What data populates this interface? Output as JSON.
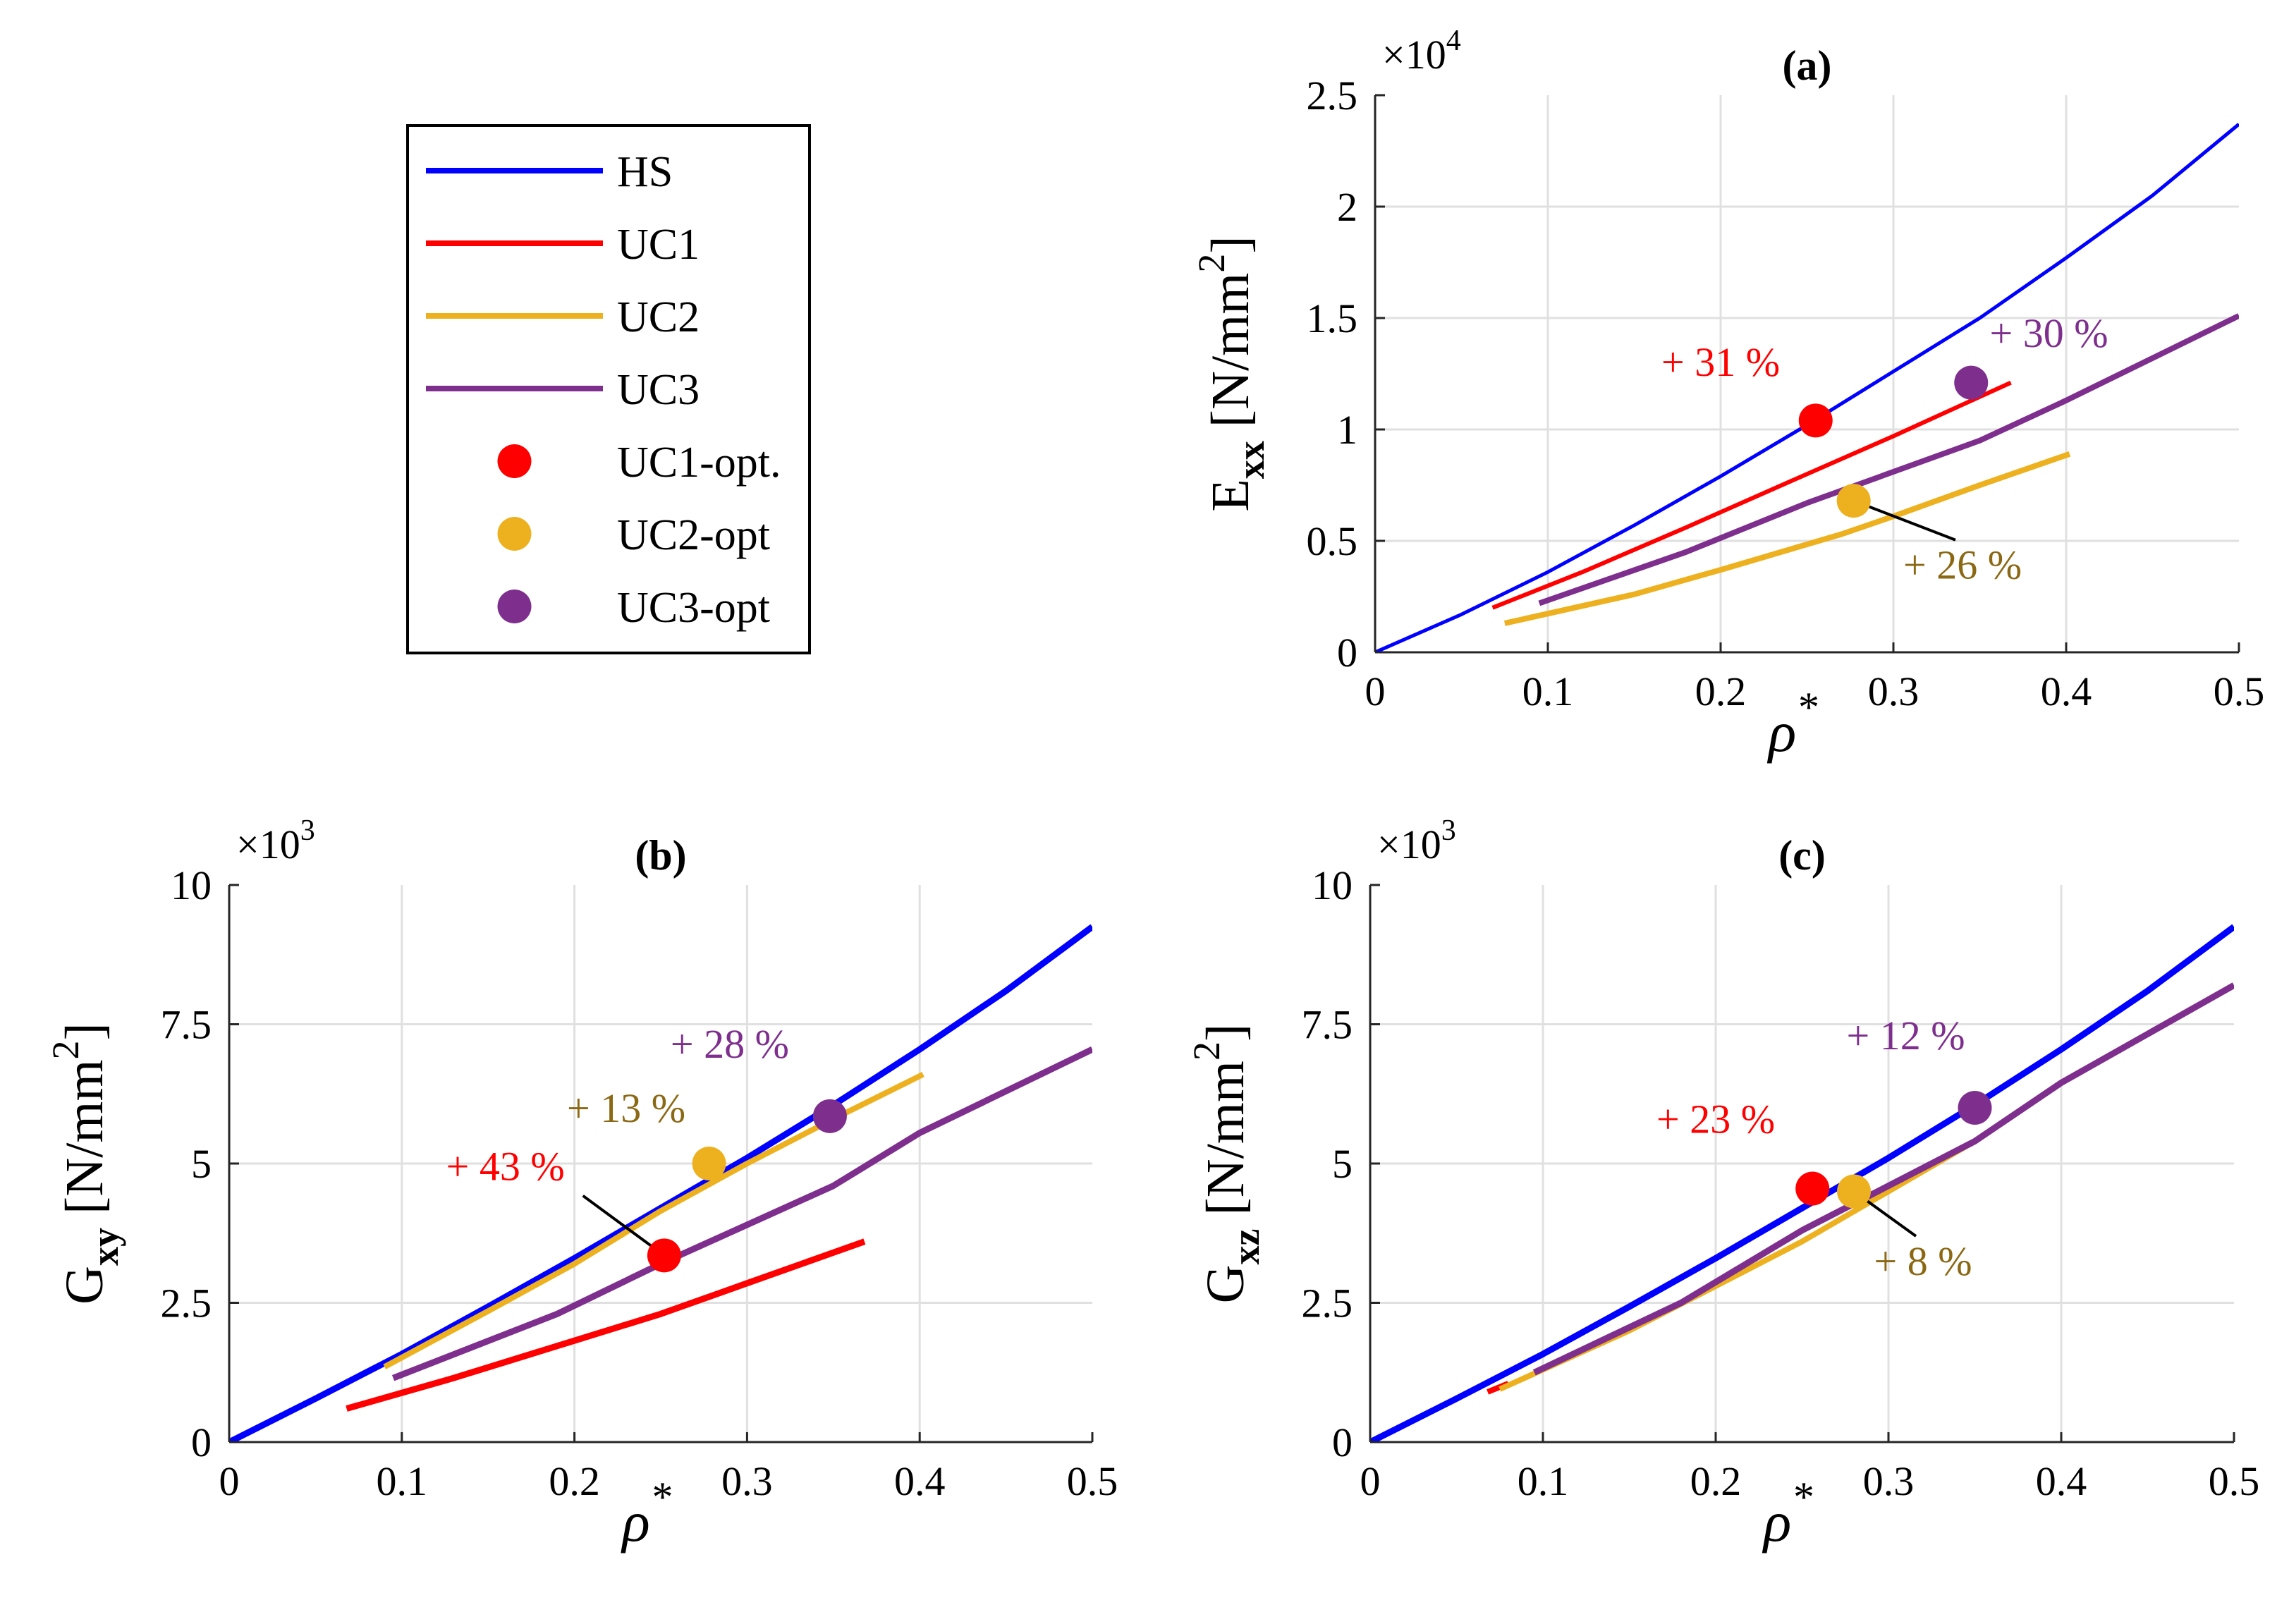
{
  "legend": {
    "entries": [
      {
        "key": "HS",
        "label": "HS",
        "kind": "line",
        "color": "#0000FF"
      },
      {
        "key": "UC1",
        "label": "UC1",
        "kind": "line",
        "color": "#FF0000"
      },
      {
        "key": "UC2",
        "label": "UC2",
        "kind": "line",
        "color": "#EDB120"
      },
      {
        "key": "UC3",
        "label": "UC3",
        "kind": "line",
        "color": "#7E2F8E"
      },
      {
        "key": "UC1opt",
        "label": "UC1-opt.",
        "kind": "marker",
        "color": "#FF0000"
      },
      {
        "key": "UC2opt",
        "label": "UC2-opt",
        "kind": "marker",
        "color": "#EDB120"
      },
      {
        "key": "UC3opt",
        "label": "UC3-opt",
        "kind": "marker",
        "color": "#7E2F8E"
      }
    ]
  },
  "chart_data": [
    {
      "id": "a",
      "type": "line",
      "title": "(a)",
      "xlabel": "ρ",
      "xlabel_sup": "*",
      "ylabel_main": "E",
      "ylabel_sub": "xx",
      "ylabel_unit": "[N/mm",
      "ylabel_unit_sup": "2",
      "ylabel_unit_close": "]",
      "multiplier_base": "×10",
      "multiplier_exp": "4",
      "xlim": [
        0,
        0.5
      ],
      "ylim": [
        0,
        2.5
      ],
      "xticks": [
        0,
        0.1,
        0.2,
        0.3,
        0.4,
        0.5
      ],
      "xtick_labels": [
        "0",
        "0.1",
        "0.2",
        "0.3",
        "0.4",
        "0.5"
      ],
      "yticks": [
        0,
        0.5,
        1,
        1.5,
        2,
        2.5
      ],
      "ytick_labels": [
        "0",
        "0.5",
        "1",
        "1.5",
        "2",
        "2.5"
      ],
      "grid": true,
      "series": [
        {
          "name": "HS",
          "color": "#0000FF",
          "width": 5,
          "x": [
            0,
            0.05,
            0.1,
            0.15,
            0.2,
            0.25,
            0.3,
            0.35,
            0.4,
            0.45,
            0.5
          ],
          "y": [
            0,
            0.17,
            0.36,
            0.57,
            0.79,
            1.02,
            1.26,
            1.5,
            1.77,
            2.05,
            2.37
          ]
        },
        {
          "name": "UC1",
          "color": "#FF0000",
          "width": 6,
          "x": [
            0.068,
            0.12,
            0.18,
            0.25,
            0.3,
            0.368
          ],
          "y": [
            0.2,
            0.36,
            0.56,
            0.8,
            0.97,
            1.21
          ]
        },
        {
          "name": "UC2",
          "color": "#EDB120",
          "width": 8,
          "x": [
            0.075,
            0.15,
            0.2,
            0.27,
            0.3,
            0.35,
            0.402
          ],
          "y": [
            0.13,
            0.26,
            0.37,
            0.53,
            0.61,
            0.75,
            0.89
          ]
        },
        {
          "name": "UC3",
          "color": "#7E2F8E",
          "width": 8,
          "x": [
            0.095,
            0.18,
            0.25,
            0.35,
            0.4,
            0.5
          ],
          "y": [
            0.22,
            0.45,
            0.67,
            0.95,
            1.13,
            1.51
          ]
        }
      ],
      "markers": [
        {
          "name": "UC1-opt.",
          "color": "#FF0000",
          "x": 0.255,
          "y": 1.04
        },
        {
          "name": "UC2-opt",
          "color": "#EDB120",
          "x": 0.277,
          "y": 0.68
        },
        {
          "name": "UC3-opt",
          "color": "#7E2F8E",
          "x": 0.345,
          "y": 1.21
        }
      ],
      "annotations": [
        {
          "text": "+ 31 %",
          "color": "#FF0000",
          "x": 0.2,
          "y": 1.24,
          "leader": false
        },
        {
          "text": "+ 30 %",
          "color": "#7E2F8E",
          "x": 0.39,
          "y": 1.37,
          "leader": false
        },
        {
          "text": "+ 26 %",
          "color": "#8B6914",
          "x": 0.34,
          "y": 0.33,
          "leader": true,
          "leader_to": [
            0.277,
            0.68
          ]
        }
      ]
    },
    {
      "id": "b",
      "type": "line",
      "title": "(b)",
      "xlabel": "ρ",
      "xlabel_sup": "*",
      "ylabel_main": "G",
      "ylabel_sub": "xy",
      "ylabel_unit": "[N/mm",
      "ylabel_unit_sup": "2",
      "ylabel_unit_close": "]",
      "multiplier_base": "×10",
      "multiplier_exp": "3",
      "xlim": [
        0,
        0.5
      ],
      "ylim": [
        0,
        10
      ],
      "xticks": [
        0,
        0.1,
        0.2,
        0.3,
        0.4,
        0.5
      ],
      "xtick_labels": [
        "0",
        "0.1",
        "0.2",
        "0.3",
        "0.4",
        "0.5"
      ],
      "yticks": [
        0,
        2.5,
        5,
        7.5,
        10
      ],
      "ytick_labels": [
        "0",
        "2.5",
        "5",
        "7.5",
        "10"
      ],
      "grid": true,
      "series": [
        {
          "name": "HS",
          "color": "#0000FF",
          "width": 9,
          "x": [
            0,
            0.05,
            0.1,
            0.15,
            0.2,
            0.25,
            0.3,
            0.35,
            0.4,
            0.45,
            0.5
          ],
          "y": [
            0,
            0.78,
            1.58,
            2.43,
            3.3,
            4.2,
            5.1,
            6.05,
            7.05,
            8.1,
            9.25
          ]
        },
        {
          "name": "UC1",
          "color": "#FF0000",
          "width": 9,
          "x": [
            0.068,
            0.13,
            0.25,
            0.3,
            0.368
          ],
          "y": [
            0.6,
            1.15,
            2.3,
            2.85,
            3.6
          ]
        },
        {
          "name": "UC2",
          "color": "#EDB120",
          "width": 8,
          "x": [
            0.09,
            0.15,
            0.2,
            0.25,
            0.3,
            0.35,
            0.402
          ],
          "y": [
            1.35,
            2.35,
            3.2,
            4.15,
            5.0,
            5.8,
            6.6
          ]
        },
        {
          "name": "UC3",
          "color": "#7E2F8E",
          "width": 9,
          "x": [
            0.095,
            0.19,
            0.25,
            0.35,
            0.4,
            0.5
          ],
          "y": [
            1.15,
            2.3,
            3.2,
            4.6,
            5.55,
            7.05
          ]
        }
      ],
      "markers": [
        {
          "name": "UC1-opt.",
          "color": "#FF0000",
          "x": 0.252,
          "y": 3.35
        },
        {
          "name": "UC2-opt",
          "color": "#EDB120",
          "x": 0.278,
          "y": 5.0
        },
        {
          "name": "UC3-opt",
          "color": "#7E2F8E",
          "x": 0.348,
          "y": 5.85
        }
      ],
      "annotations": [
        {
          "text": "+ 43 %",
          "color": "#FF0000",
          "x": 0.16,
          "y": 4.7,
          "leader": true,
          "leader_to": [
            0.252,
            3.35
          ]
        },
        {
          "text": "+ 13 %",
          "color": "#8B6914",
          "x": 0.23,
          "y": 5.75,
          "leader": false
        },
        {
          "text": "+ 28 %",
          "color": "#7E2F8E",
          "x": 0.29,
          "y": 6.9,
          "leader": false
        }
      ]
    },
    {
      "id": "c",
      "type": "line",
      "title": "(c)",
      "xlabel": "ρ",
      "xlabel_sup": "*",
      "ylabel_main": "G",
      "ylabel_sub": "xz",
      "ylabel_unit": "[N/mm",
      "ylabel_unit_sup": "2",
      "ylabel_unit_close": "]",
      "multiplier_base": "×10",
      "multiplier_exp": "3",
      "xlim": [
        0,
        0.5
      ],
      "ylim": [
        0,
        10
      ],
      "xticks": [
        0,
        0.1,
        0.2,
        0.3,
        0.4,
        0.5
      ],
      "xtick_labels": [
        "0",
        "0.1",
        "0.2",
        "0.3",
        "0.4",
        "0.5"
      ],
      "yticks": [
        0,
        2.5,
        5,
        7.5,
        10
      ],
      "ytick_labels": [
        "0",
        "2.5",
        "5",
        "7.5",
        "10"
      ],
      "grid": true,
      "series": [
        {
          "name": "UC1",
          "color": "#FF0000",
          "width": 8,
          "x": [
            0.068,
            0.08
          ],
          "y": [
            0.9,
            1.05
          ]
        },
        {
          "name": "UC2",
          "color": "#EDB120",
          "width": 8,
          "x": [
            0.075,
            0.15,
            0.25,
            0.3,
            0.35
          ],
          "y": [
            0.95,
            2.0,
            3.6,
            4.5,
            5.4
          ]
        },
        {
          "name": "UC3",
          "color": "#7E2F8E",
          "width": 9,
          "x": [
            0.095,
            0.18,
            0.25,
            0.35,
            0.4,
            0.5
          ],
          "y": [
            1.25,
            2.5,
            3.8,
            5.4,
            6.45,
            8.2
          ]
        },
        {
          "name": "HS",
          "color": "#0000FF",
          "width": 9,
          "x": [
            0,
            0.05,
            0.1,
            0.15,
            0.2,
            0.25,
            0.3,
            0.35,
            0.4,
            0.45,
            0.5
          ],
          "y": [
            0,
            0.78,
            1.58,
            2.43,
            3.3,
            4.2,
            5.1,
            6.05,
            7.05,
            8.1,
            9.25
          ]
        }
      ],
      "markers": [
        {
          "name": "UC1-opt.",
          "color": "#FF0000",
          "x": 0.256,
          "y": 4.55
        },
        {
          "name": "UC2-opt",
          "color": "#EDB120",
          "x": 0.28,
          "y": 4.5
        },
        {
          "name": "UC3-opt",
          "color": "#7E2F8E",
          "x": 0.35,
          "y": 6.0
        }
      ],
      "annotations": [
        {
          "text": "+ 23 %",
          "color": "#FF0000",
          "x": 0.2,
          "y": 5.55,
          "leader": false
        },
        {
          "text": "+ 12 %",
          "color": "#7E2F8E",
          "x": 0.31,
          "y": 7.05,
          "leader": false
        },
        {
          "text": "+ 8 %",
          "color": "#8B6914",
          "x": 0.32,
          "y": 3.0,
          "leader": true,
          "leader_to": [
            0.28,
            4.5
          ]
        }
      ]
    }
  ]
}
